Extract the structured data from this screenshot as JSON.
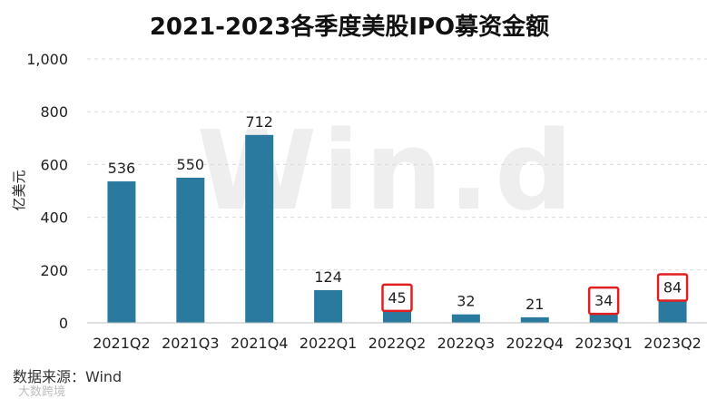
{
  "chart_data": {
    "type": "bar",
    "title": "2021-2023各季度美股IPO募资金额",
    "ylabel": "亿美元",
    "xlabel": "",
    "categories": [
      "2021Q2",
      "2021Q3",
      "2021Q4",
      "2022Q1",
      "2022Q2",
      "2022Q3",
      "2022Q4",
      "2023Q1",
      "2023Q2"
    ],
    "values": [
      536,
      550,
      712,
      124,
      45,
      32,
      21,
      34,
      84
    ],
    "value_labels": [
      "536",
      "550",
      "712",
      "124",
      "45",
      "32",
      "21",
      "34",
      "84"
    ],
    "ylim": [
      0,
      1000
    ],
    "yticks": [
      0,
      200,
      400,
      600,
      800,
      1000
    ],
    "ytick_labels": [
      "0",
      "200",
      "400",
      "600",
      "800",
      "1,000"
    ],
    "highlighted": [
      "2022Q2",
      "2023Q1",
      "2023Q2"
    ],
    "grid": true,
    "legend": "none",
    "bar_color": "#2a7aa0",
    "highlight_color": "#e02020"
  },
  "watermark": "Win.d",
  "source": "数据来源：Wind",
  "credit": "大数跨境"
}
